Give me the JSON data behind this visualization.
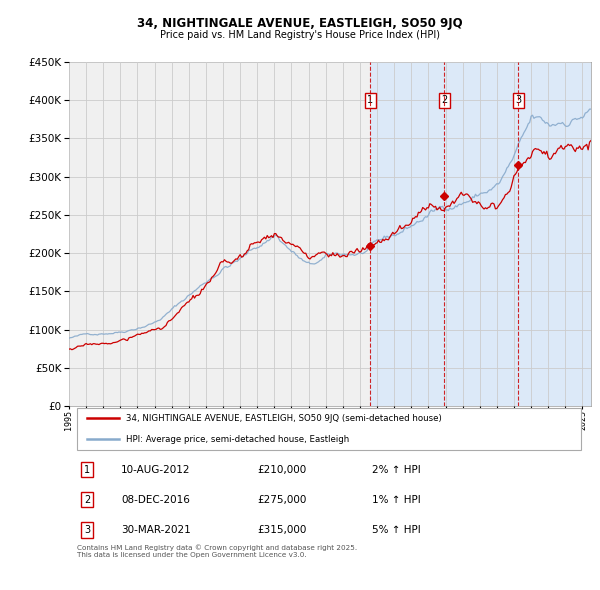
{
  "title": "34, NIGHTINGALE AVENUE, EASTLEIGH, SO50 9JQ",
  "subtitle": "Price paid vs. HM Land Registry's House Price Index (HPI)",
  "plot_bg_color": "#f0f0f0",
  "highlight_color": "#dce9f8",
  "ylim": [
    0,
    450000
  ],
  "yticks": [
    0,
    50000,
    100000,
    150000,
    200000,
    250000,
    300000,
    350000,
    400000,
    450000
  ],
  "xlim_start": 1995.0,
  "xlim_end": 2025.5,
  "sale_color": "#cc0000",
  "hpi_color": "#88aacc",
  "vline_color": "#cc0000",
  "grid_color": "#cccccc",
  "sales": [
    {
      "date_num": 2012.61,
      "price": 210000,
      "label": "1"
    },
    {
      "date_num": 2016.93,
      "price": 275000,
      "label": "2"
    },
    {
      "date_num": 2021.24,
      "price": 315000,
      "label": "3"
    }
  ],
  "legend_sale_label": "34, NIGHTINGALE AVENUE, EASTLEIGH, SO50 9JQ (semi-detached house)",
  "legend_hpi_label": "HPI: Average price, semi-detached house, Eastleigh",
  "table_entries": [
    {
      "num": "1",
      "date": "10-AUG-2012",
      "price": "£210,000",
      "change": "2% ↑ HPI"
    },
    {
      "num": "2",
      "date": "08-DEC-2016",
      "price": "£275,000",
      "change": "1% ↑ HPI"
    },
    {
      "num": "3",
      "date": "30-MAR-2021",
      "price": "£315,000",
      "change": "5% ↑ HPI"
    }
  ],
  "footer": "Contains HM Land Registry data © Crown copyright and database right 2025.\nThis data is licensed under the Open Government Licence v3.0."
}
